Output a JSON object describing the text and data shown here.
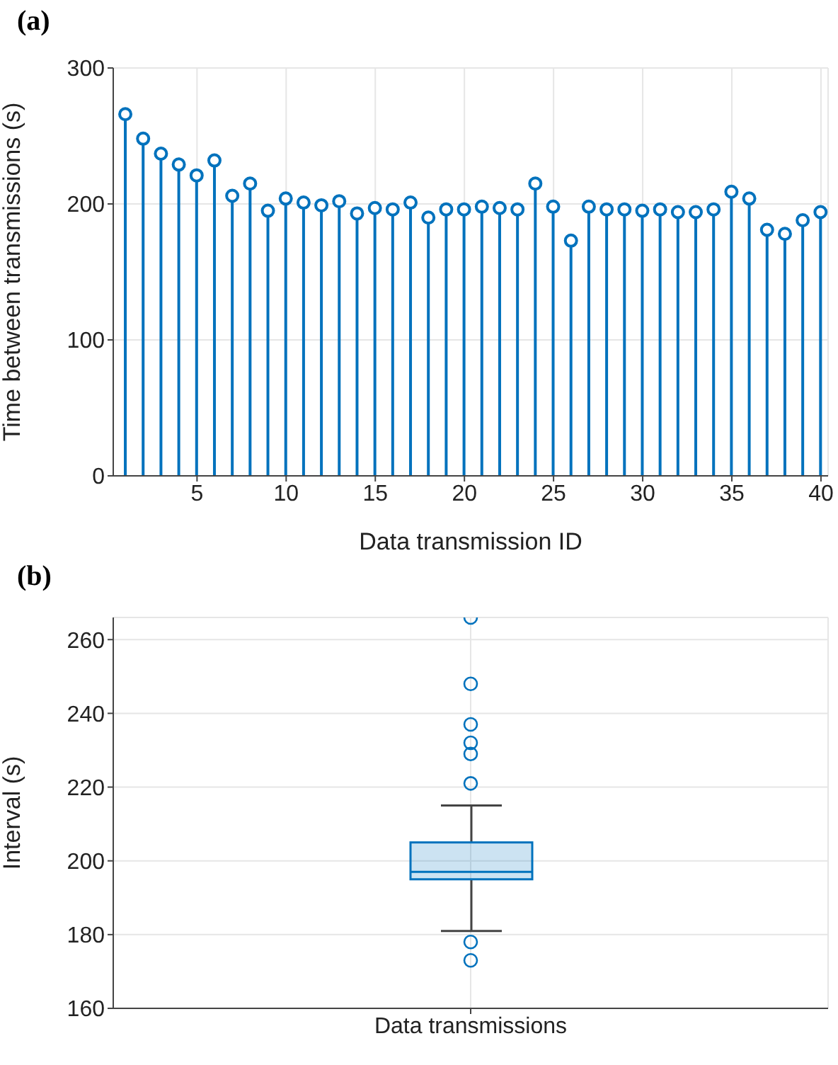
{
  "chart_data": [
    {
      "type": "lollipop",
      "title": "(a)",
      "xlabel": "Data transmission ID",
      "ylabel": "Time between transmissions (s)",
      "x": [
        1,
        2,
        3,
        4,
        5,
        6,
        7,
        8,
        9,
        10,
        11,
        12,
        13,
        14,
        15,
        16,
        17,
        18,
        19,
        20,
        21,
        22,
        23,
        24,
        25,
        26,
        27,
        28,
        29,
        30,
        31,
        32,
        33,
        34,
        35,
        36,
        37,
        38,
        39,
        40
      ],
      "values": [
        266,
        248,
        237,
        229,
        221,
        232,
        206,
        215,
        195,
        204,
        201,
        199,
        202,
        193,
        197,
        196,
        201,
        190,
        196,
        196,
        198,
        197,
        196,
        215,
        198,
        173,
        198,
        196,
        196,
        195,
        196,
        194,
        194,
        196,
        209,
        204,
        181,
        178,
        188,
        194
      ],
      "color": "#0072bd",
      "marker": "circle",
      "xlim": [
        0.3,
        40.4
      ],
      "xticks": [
        5,
        10,
        15,
        20,
        25,
        30,
        35,
        40
      ],
      "ylim": [
        0,
        300
      ],
      "yticks": [
        0,
        100,
        200,
        300
      ],
      "grid": true
    },
    {
      "type": "box",
      "title": "(b)",
      "ylabel": "Interval (s)",
      "categories": [
        "Data transmissions"
      ],
      "color": "#0072bd",
      "boxes": [
        {
          "low": 181,
          "q1": 195,
          "median": 197,
          "q3": 205,
          "high": 215,
          "outliers": [
            266,
            248,
            237,
            232,
            229,
            221,
            178,
            173
          ]
        }
      ],
      "ylim": [
        160,
        266
      ],
      "yticks": [
        160,
        180,
        200,
        220,
        240,
        260
      ],
      "grid": true
    }
  ]
}
